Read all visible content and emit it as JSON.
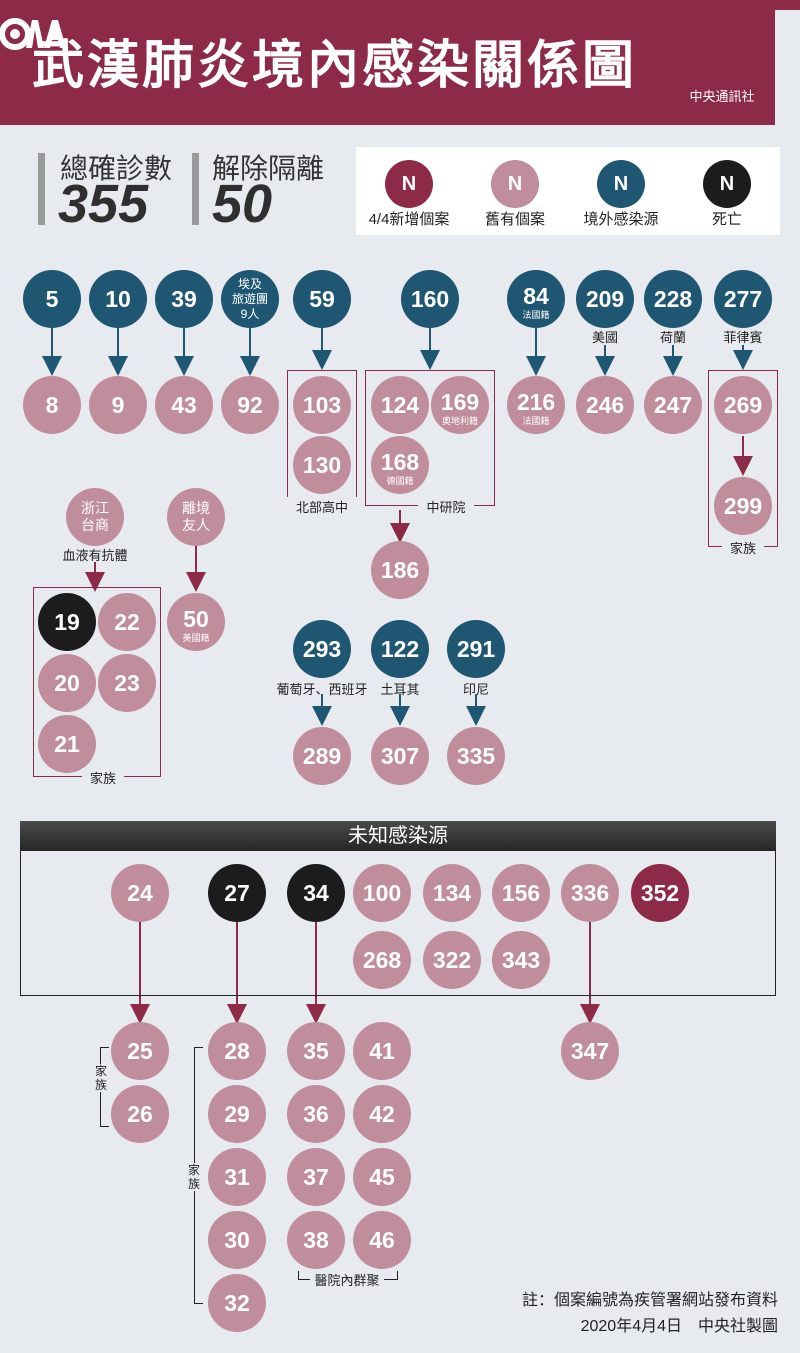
{
  "header": {
    "title": "武漢肺炎境內感染關係圖",
    "logo_text": "CNA",
    "logo_sub": "中央通訊社",
    "bg_color": "#8c2a47"
  },
  "stats": [
    {
      "label": "總確診數",
      "value": "355"
    },
    {
      "label": "解除隔離",
      "value": "50"
    }
  ],
  "legend": [
    {
      "symbol": "N",
      "label": "4/4新增個案",
      "color": "#8c2a47"
    },
    {
      "symbol": "N",
      "label": "舊有個案",
      "color": "#bf8d9c"
    },
    {
      "symbol": "N",
      "label": "境外感染源",
      "color": "#1f5672"
    },
    {
      "symbol": "N",
      "label": "死亡",
      "color": "#1c1c1c"
    }
  ],
  "labels": {
    "tour_node": "埃及旅遊團9人",
    "tour_l1": "埃及",
    "tour_l2": "旅遊團",
    "tour_l3": "9人",
    "n84_sub": "法國籍",
    "n209_sub": "美國",
    "n228_sub": "荷蘭",
    "n277_sub": "菲律賓",
    "n169_sub": "奧地利籍",
    "n216_sub": "法國籍",
    "n168_sub": "德國籍",
    "n50_sub": "美國籍",
    "group_beibu": "北部高中",
    "group_zhongyan": "中研院",
    "group_family": "家族",
    "zhejiang_l1": "浙江",
    "zhejiang_l2": "台商",
    "antibody": "血液有抗體",
    "friend_l1": "離境",
    "friend_l2": "友人",
    "n293_sub": "葡萄牙、西班牙",
    "n122_sub": "土耳其",
    "n291_sub": "印尼",
    "unknown_title": "未知感染源",
    "family_vertical": "家族",
    "hospital_cluster": "醫院內群聚"
  },
  "nodes": {
    "n5": "5",
    "n10": "10",
    "n39": "39",
    "n59": "59",
    "n160": "160",
    "n84": "84",
    "n209": "209",
    "n228": "228",
    "n277": "277",
    "n8": "8",
    "n9": "9",
    "n43": "43",
    "n92": "92",
    "n103": "103",
    "n124": "124",
    "n169": "169",
    "n216": "216",
    "n246": "246",
    "n247": "247",
    "n269": "269",
    "n130": "130",
    "n168": "168",
    "n299": "299",
    "n186": "186",
    "n19": "19",
    "n22": "22",
    "n20": "20",
    "n23": "23",
    "n21": "21",
    "n50": "50",
    "n293": "293",
    "n122": "122",
    "n291": "291",
    "n289": "289",
    "n307": "307",
    "n335": "335",
    "n24": "24",
    "n27": "27",
    "n34": "34",
    "n100": "100",
    "n134": "134",
    "n156": "156",
    "n336": "336",
    "n352": "352",
    "n268": "268",
    "n322": "322",
    "n343": "343",
    "n25": "25",
    "n26": "26",
    "n28": "28",
    "n29": "29",
    "n31": "31",
    "n30": "30",
    "n32": "32",
    "n35": "35",
    "n36": "36",
    "n37": "37",
    "n38": "38",
    "n41": "41",
    "n42": "42",
    "n45": "45",
    "n46": "46",
    "n347": "347"
  },
  "footer": {
    "note": "註：個案編號為疾管署網站發布資料",
    "credit": "2020年4月4日　中央社製圖"
  }
}
